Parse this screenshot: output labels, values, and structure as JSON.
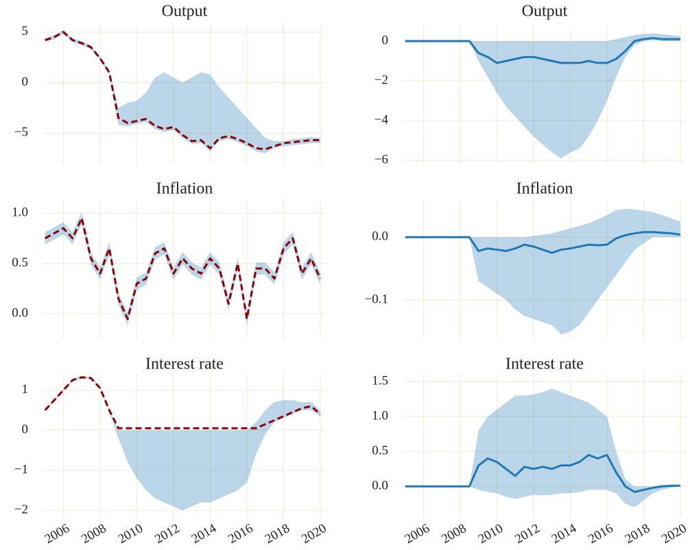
{
  "chart_data": [
    {
      "type": "line",
      "title": "Output",
      "x": [
        2005,
        2005.5,
        2006,
        2006.5,
        2007,
        2007.5,
        2008,
        2008.5,
        2009,
        2009.5,
        2010,
        2010.5,
        2011,
        2011.5,
        2012,
        2012.5,
        2013,
        2013.5,
        2014,
        2014.5,
        2015,
        2015.5,
        2016,
        2016.5,
        2017,
        2017.5,
        2018,
        2018.5,
        2019,
        2019.5,
        2020
      ],
      "xlim": [
        2004.9,
        2020.3
      ],
      "xticks": [
        2006,
        2008,
        2010,
        2012,
        2014,
        2016,
        2018,
        2020
      ],
      "show_xtick_labels": false,
      "ylim": [
        -8.1,
        5.8
      ],
      "yticks": [
        {
          "value": -5,
          "label": "−5"
        },
        0,
        5
      ],
      "grid": true,
      "series": [
        {
          "color": "#1f77b4",
          "opacity": 0.3,
          "lower": [
            4.0,
            4.3,
            4.8,
            4.0,
            3.7,
            3.3,
            2.2,
            0.8,
            -4.2,
            -4.3,
            -4.1,
            -3.9,
            -4.6,
            -4.9,
            -4.7,
            -5.5,
            -6.1,
            -6.0,
            -6.8,
            -5.8,
            -5.6,
            -5.9,
            -6.3,
            -6.8,
            -7.0,
            -6.5,
            -6.3,
            -6.2,
            -6.1,
            -6.0,
            -6.0
          ],
          "upper": [
            4.4,
            4.7,
            5.2,
            4.4,
            4.1,
            3.7,
            2.6,
            1.2,
            -2.5,
            -2.0,
            -1.8,
            -1.0,
            0.5,
            1.0,
            0.5,
            0.0,
            0.5,
            1.0,
            0.8,
            -0.5,
            -1.5,
            -2.5,
            -3.5,
            -4.5,
            -5.5,
            -5.8,
            -5.8,
            -5.6,
            -5.5,
            -5.4,
            -5.5
          ]
        },
        {
          "color": "#8b0000",
          "dash": true,
          "values": [
            4.2,
            4.5,
            5.0,
            4.2,
            3.9,
            3.5,
            2.4,
            1.0,
            -3.5,
            -4.0,
            -3.8,
            -3.6,
            -4.3,
            -4.6,
            -4.4,
            -5.2,
            -5.8,
            -5.7,
            -6.5,
            -5.5,
            -5.3,
            -5.6,
            -6.0,
            -6.5,
            -6.6,
            -6.3,
            -6.0,
            -5.9,
            -5.8,
            -5.7,
            -5.7
          ]
        }
      ]
    },
    {
      "type": "line",
      "title": "Output",
      "x": [
        2005,
        2005.5,
        2006,
        2006.5,
        2007,
        2007.5,
        2008,
        2008.5,
        2009,
        2009.5,
        2010,
        2010.5,
        2011,
        2011.5,
        2012,
        2012.5,
        2013,
        2013.5,
        2014,
        2014.5,
        2015,
        2015.5,
        2016,
        2016.5,
        2017,
        2017.5,
        2018,
        2018.5,
        2019,
        2019.5,
        2020
      ],
      "xlim": [
        2004.9,
        2020.3
      ],
      "xticks": [
        2006,
        2008,
        2010,
        2012,
        2014,
        2016,
        2018,
        2020
      ],
      "show_xtick_labels": false,
      "ylim": [
        -6.2,
        0.86
      ],
      "yticks": [
        {
          "value": -6,
          "label": "−6"
        },
        {
          "value": -4,
          "label": "−4"
        },
        {
          "value": -2,
          "label": "−2"
        },
        0
      ],
      "grid": true,
      "series": [
        {
          "color": "#1f77b4",
          "opacity": 0.3,
          "lower": [
            0,
            0,
            0,
            0,
            0,
            0,
            0,
            0,
            -1.0,
            -1.8,
            -2.6,
            -3.3,
            -3.8,
            -4.3,
            -4.8,
            -5.2,
            -5.6,
            -5.9,
            -5.6,
            -5.4,
            -4.8,
            -4.0,
            -3.0,
            -1.8,
            -0.8,
            -0.2,
            0.0,
            0.05,
            0.0,
            0.0,
            0.0
          ],
          "upper": [
            0,
            0,
            0,
            0,
            0,
            0,
            0,
            0,
            0,
            0,
            0,
            0,
            0,
            0,
            0,
            0,
            0,
            0,
            0,
            0,
            0,
            0,
            0,
            0.1,
            0.2,
            0.3,
            0.35,
            0.4,
            0.35,
            0.3,
            0.25
          ]
        },
        {
          "color": "#1f77b4",
          "values": [
            0,
            0,
            0,
            0,
            0,
            0,
            0,
            0,
            -0.6,
            -0.8,
            -1.1,
            -1.0,
            -0.9,
            -0.8,
            -0.8,
            -0.9,
            -1.0,
            -1.1,
            -1.1,
            -1.1,
            -1.0,
            -1.1,
            -1.1,
            -0.9,
            -0.5,
            0.0,
            0.1,
            0.15,
            0.1,
            0.1,
            0.1
          ]
        }
      ]
    },
    {
      "type": "line",
      "title": "Inflation",
      "x": [
        2005,
        2005.5,
        2006,
        2006.5,
        2007,
        2007.5,
        2008,
        2008.5,
        2009,
        2009.5,
        2010,
        2010.5,
        2011,
        2011.5,
        2012,
        2012.5,
        2013,
        2013.5,
        2014,
        2014.5,
        2015,
        2015.5,
        2016,
        2016.5,
        2017,
        2017.5,
        2018,
        2018.5,
        2019,
        2019.5,
        2020
      ],
      "xlim": [
        2004.9,
        2020.3
      ],
      "xticks": [
        2006,
        2008,
        2010,
        2012,
        2014,
        2016,
        2018,
        2020
      ],
      "show_xtick_labels": false,
      "ylim": [
        -0.25,
        1.13
      ],
      "yticks": [
        {
          "value": 0,
          "label": "0.0"
        },
        0.5,
        {
          "value": 1,
          "label": "1.0"
        }
      ],
      "grid": true,
      "series": [
        {
          "color": "#1f77b4",
          "opacity": 0.3,
          "lower": [
            0.69,
            0.74,
            0.79,
            0.69,
            0.89,
            0.49,
            0.34,
            0.59,
            0.09,
            -0.11,
            0.24,
            0.29,
            0.54,
            0.59,
            0.34,
            0.49,
            0.39,
            0.34,
            0.49,
            0.39,
            0.04,
            0.44,
            -0.11,
            0.39,
            0.39,
            0.29,
            0.59,
            0.69,
            0.34,
            0.49,
            0.29
          ],
          "upper": [
            0.81,
            0.86,
            0.91,
            0.81,
            1.01,
            0.61,
            0.46,
            0.71,
            0.21,
            0.01,
            0.36,
            0.41,
            0.66,
            0.71,
            0.46,
            0.61,
            0.51,
            0.46,
            0.61,
            0.51,
            0.16,
            0.56,
            0.01,
            0.51,
            0.51,
            0.41,
            0.71,
            0.81,
            0.46,
            0.61,
            0.41
          ]
        },
        {
          "color": "#8b0000",
          "dash": true,
          "values": [
            0.75,
            0.8,
            0.85,
            0.75,
            0.95,
            0.55,
            0.4,
            0.65,
            0.15,
            -0.05,
            0.3,
            0.35,
            0.6,
            0.65,
            0.4,
            0.55,
            0.45,
            0.4,
            0.55,
            0.45,
            0.1,
            0.5,
            -0.05,
            0.45,
            0.45,
            0.35,
            0.65,
            0.75,
            0.4,
            0.55,
            0.35
          ]
        }
      ]
    },
    {
      "type": "line",
      "title": "Inflation",
      "x": [
        2005,
        2005.5,
        2006,
        2006.5,
        2007,
        2007.5,
        2008,
        2008.5,
        2009,
        2009.5,
        2010,
        2010.5,
        2011,
        2011.5,
        2012,
        2012.5,
        2013,
        2013.5,
        2014,
        2014.5,
        2015,
        2015.5,
        2016,
        2016.5,
        2017,
        2017.5,
        2018,
        2018.5,
        2019,
        2019.5,
        2020
      ],
      "xlim": [
        2004.9,
        2020.3
      ],
      "xticks": [
        2006,
        2008,
        2010,
        2012,
        2014,
        2016,
        2018,
        2020
      ],
      "show_xtick_labels": false,
      "ylim": [
        -0.162,
        0.059
      ],
      "yticks": [
        {
          "value": -0.1,
          "label": "−0.1"
        },
        {
          "value": 0,
          "label": "0.0"
        }
      ],
      "grid": true,
      "series": [
        {
          "color": "#1f77b4",
          "opacity": 0.3,
          "lower": [
            0,
            0,
            0,
            0,
            0,
            0,
            0,
            0,
            -0.07,
            -0.08,
            -0.09,
            -0.1,
            -0.115,
            -0.125,
            -0.13,
            -0.135,
            -0.14,
            -0.155,
            -0.15,
            -0.14,
            -0.12,
            -0.1,
            -0.08,
            -0.06,
            -0.04,
            -0.02,
            -0.01,
            0,
            0,
            0,
            0
          ],
          "upper": [
            0,
            0,
            0,
            0,
            0,
            0,
            0,
            0,
            0,
            0,
            0,
            0,
            0,
            0,
            0.002,
            0.004,
            0.006,
            0.01,
            0.014,
            0.018,
            0.022,
            0.028,
            0.035,
            0.043,
            0.045,
            0.044,
            0.042,
            0.04,
            0.035,
            0.03,
            0.025
          ]
        },
        {
          "color": "#1f77b4",
          "values": [
            0,
            0,
            0,
            0,
            0,
            0,
            0,
            0,
            -0.022,
            -0.018,
            -0.02,
            -0.022,
            -0.018,
            -0.012,
            -0.015,
            -0.02,
            -0.025,
            -0.02,
            -0.018,
            -0.015,
            -0.012,
            -0.013,
            -0.012,
            -0.002,
            0.003,
            0.006,
            0.008,
            0.008,
            0.007,
            0.006,
            0.004
          ]
        }
      ]
    },
    {
      "type": "line",
      "title": "Interest rate",
      "x": [
        2005,
        2005.5,
        2006,
        2006.5,
        2007,
        2007.5,
        2008,
        2008.5,
        2009,
        2009.5,
        2010,
        2010.5,
        2011,
        2011.5,
        2012,
        2012.5,
        2013,
        2013.5,
        2014,
        2014.5,
        2015,
        2015.5,
        2016,
        2016.5,
        2017,
        2017.5,
        2018,
        2018.5,
        2019,
        2019.5,
        2020
      ],
      "xlim": [
        2004.9,
        2020.3
      ],
      "xticks": [
        2006,
        2008,
        2010,
        2012,
        2014,
        2016,
        2018,
        2020
      ],
      "show_xtick_labels": true,
      "ylim": [
        -2.2,
        1.42
      ],
      "yticks": [
        {
          "value": -2,
          "label": "−2"
        },
        {
          "value": -1,
          "label": "−1"
        },
        0,
        1
      ],
      "grid": true,
      "series": [
        {
          "color": "#1f77b4",
          "opacity": 0.3,
          "lower": [
            0.47,
            0.72,
            0.97,
            1.22,
            1.29,
            1.27,
            1.02,
            0.47,
            -0.2,
            -0.8,
            -1.2,
            -1.5,
            -1.7,
            -1.8,
            -1.9,
            -2.0,
            -1.9,
            -1.8,
            -1.8,
            -1.7,
            -1.6,
            -1.5,
            -1.3,
            -0.6,
            -0.1,
            0.2,
            0.3,
            0.4,
            0.5,
            0.5,
            0.35
          ],
          "upper": [
            0.53,
            0.78,
            1.03,
            1.28,
            1.35,
            1.33,
            1.08,
            0.53,
            0.0,
            0.0,
            0.0,
            0.0,
            0.0,
            0.0,
            0.0,
            0.0,
            0.0,
            0.0,
            0.0,
            0.0,
            0.0,
            0.0,
            0.0,
            0.2,
            0.5,
            0.7,
            0.75,
            0.75,
            0.7,
            0.7,
            0.5
          ]
        },
        {
          "color": "#8b0000",
          "dash": true,
          "values": [
            0.5,
            0.75,
            1.0,
            1.25,
            1.32,
            1.3,
            1.05,
            0.5,
            0.05,
            0.05,
            0.05,
            0.05,
            0.05,
            0.05,
            0.05,
            0.05,
            0.05,
            0.05,
            0.05,
            0.05,
            0.05,
            0.05,
            0.05,
            0.05,
            0.15,
            0.25,
            0.35,
            0.45,
            0.55,
            0.6,
            0.4
          ]
        }
      ]
    },
    {
      "type": "line",
      "title": "Interest rate",
      "x": [
        2005,
        2005.5,
        2006,
        2006.5,
        2007,
        2007.5,
        2008,
        2008.5,
        2009,
        2009.5,
        2010,
        2010.5,
        2011,
        2011.5,
        2012,
        2012.5,
        2013,
        2013.5,
        2014,
        2014.5,
        2015,
        2015.5,
        2016,
        2016.5,
        2017,
        2017.5,
        2018,
        2018.5,
        2019,
        2019.5,
        2020
      ],
      "xlim": [
        2004.9,
        2020.3
      ],
      "xticks": [
        2006,
        2008,
        2010,
        2012,
        2014,
        2016,
        2018,
        2020
      ],
      "show_xtick_labels": true,
      "ylim": [
        -0.46,
        1.62
      ],
      "yticks": [
        {
          "value": 0,
          "label": "0.0"
        },
        0.5,
        {
          "value": 1,
          "label": "1.0"
        },
        1.5
      ],
      "grid": true,
      "series": [
        {
          "color": "#1f77b4",
          "opacity": 0.3,
          "lower": [
            0,
            0,
            0,
            0,
            0,
            0,
            0,
            0,
            -0.05,
            -0.08,
            -0.1,
            -0.15,
            -0.18,
            -0.15,
            -0.12,
            -0.13,
            -0.12,
            -0.1,
            -0.1,
            -0.08,
            -0.05,
            -0.05,
            -0.05,
            -0.1,
            -0.25,
            -0.3,
            -0.2,
            -0.1,
            -0.05,
            -0.02,
            0
          ],
          "upper": [
            0,
            0,
            0,
            0,
            0,
            0,
            0,
            0,
            0.8,
            1.0,
            1.1,
            1.2,
            1.3,
            1.3,
            1.32,
            1.35,
            1.4,
            1.35,
            1.3,
            1.25,
            1.2,
            1.1,
            1.0,
            0.5,
            0.1,
            0.0,
            0.0,
            0.0,
            0.02,
            0.02,
            0.02
          ]
        },
        {
          "color": "#1f77b4",
          "values": [
            0,
            0,
            0,
            0,
            0,
            0,
            0,
            0,
            0.3,
            0.4,
            0.35,
            0.25,
            0.15,
            0.28,
            0.25,
            0.28,
            0.25,
            0.3,
            0.3,
            0.35,
            0.45,
            0.4,
            0.45,
            0.2,
            0.0,
            -0.08,
            -0.05,
            -0.02,
            0.0,
            0.01,
            0.01
          ]
        }
      ]
    }
  ]
}
